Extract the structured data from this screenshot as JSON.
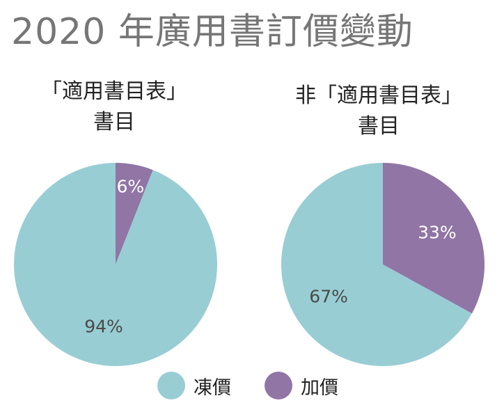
{
  "title": "2020 年廣用書訂價變動",
  "colors": {
    "frozen": "#98cdd4",
    "raised": "#9075a5",
    "frozen_label": "#4a4a4a",
    "raised_label": "#ffffff"
  },
  "legend": [
    {
      "label": "凍價",
      "color": "#98cdd4"
    },
    {
      "label": "加價",
      "color": "#9075a5"
    }
  ],
  "chart_data": [
    {
      "type": "pie",
      "title_lines": [
        "「適用書目表」",
        "書目"
      ],
      "slices": [
        {
          "name": "加價",
          "value": 6,
          "label": "6%"
        },
        {
          "name": "凍價",
          "value": 94,
          "label": "94%"
        }
      ]
    },
    {
      "type": "pie",
      "title_lines": [
        "非「適用書目表」",
        "書目"
      ],
      "slices": [
        {
          "name": "加價",
          "value": 33,
          "label": "33%"
        },
        {
          "name": "凍價",
          "value": 67,
          "label": "67%"
        }
      ]
    }
  ]
}
